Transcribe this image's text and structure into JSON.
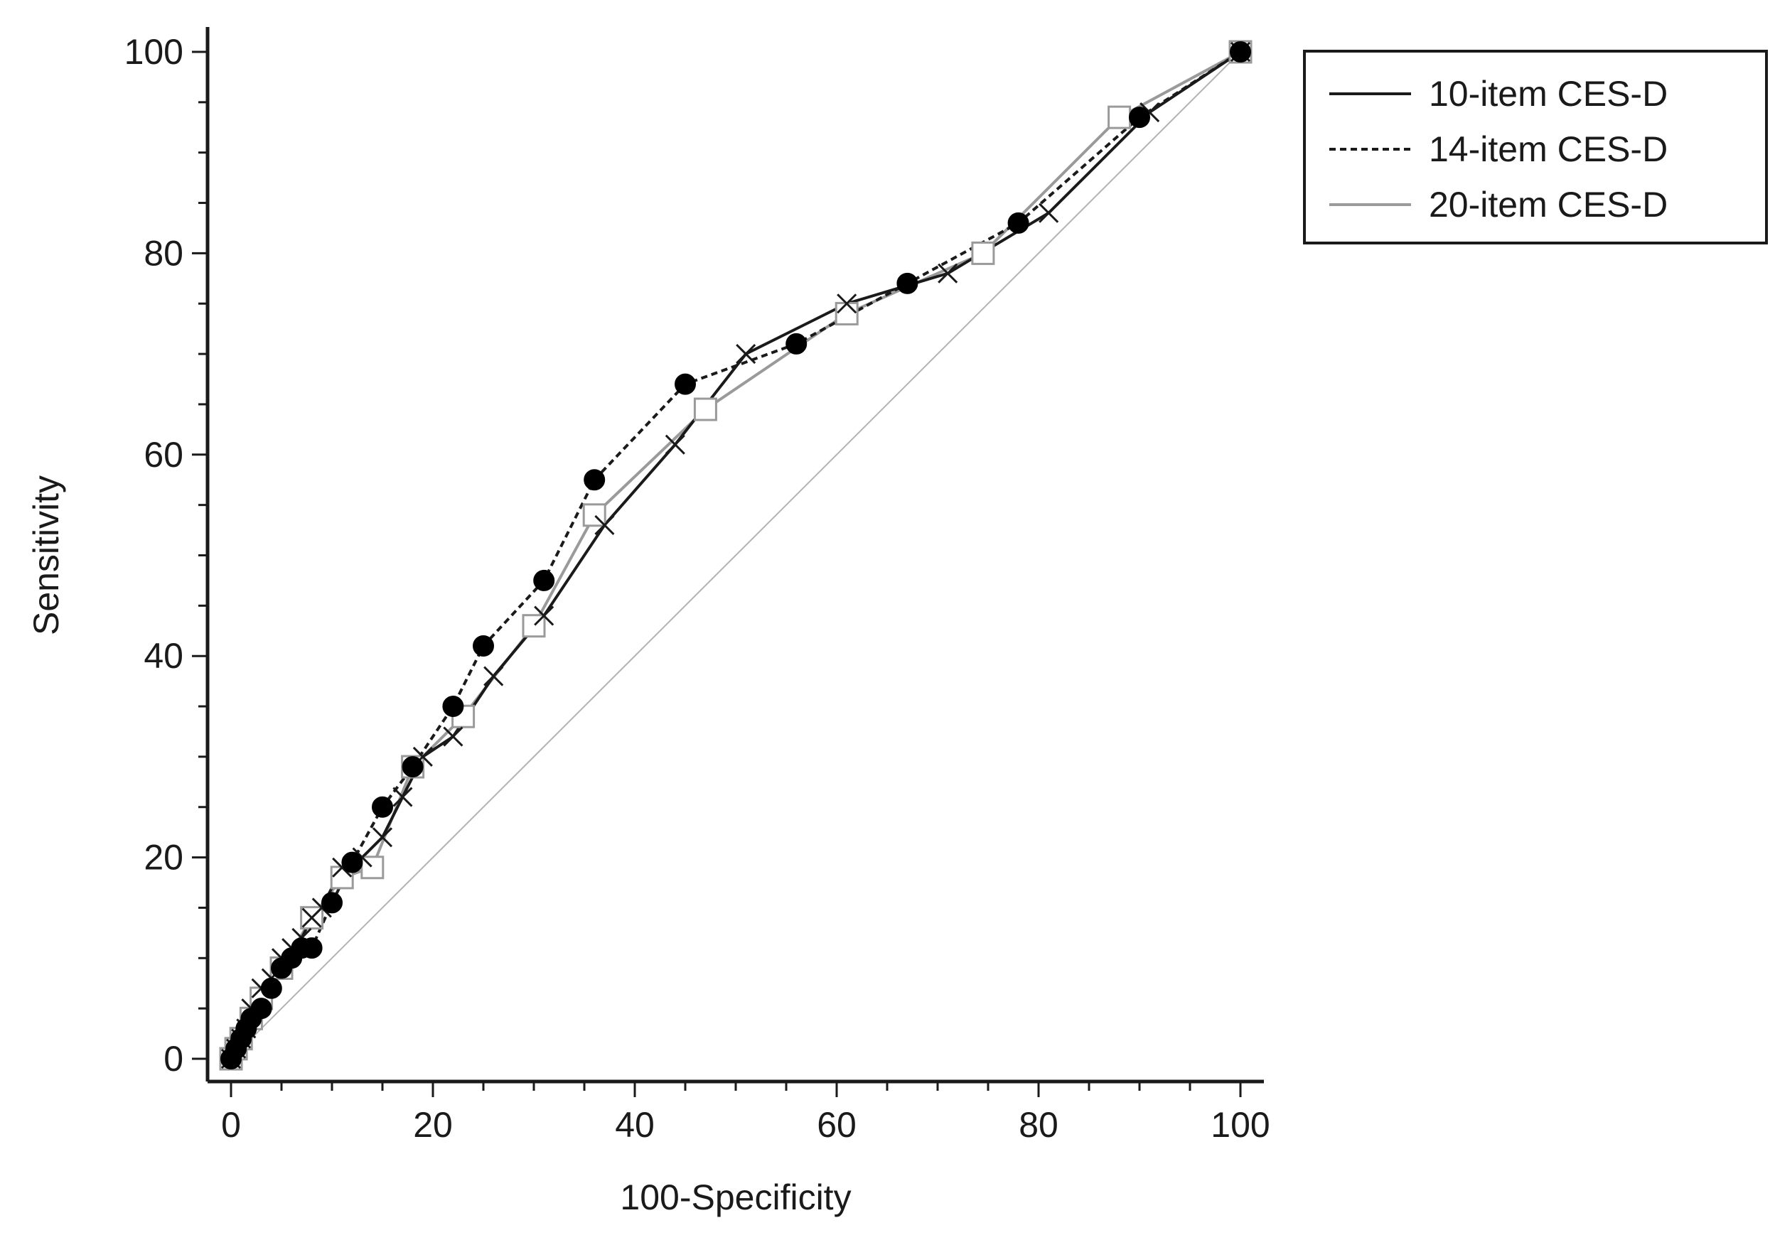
{
  "chart_data": {
    "type": "line",
    "title": "",
    "xlabel": "100-Specificity",
    "ylabel": "Sensitivity",
    "xlim": [
      0,
      100
    ],
    "ylim": [
      0,
      100
    ],
    "x_ticks": [
      "0",
      "20",
      "40",
      "60",
      "80",
      "100"
    ],
    "y_ticks": [
      "0",
      "20",
      "40",
      "60",
      "80",
      "100"
    ],
    "grid": false,
    "legend_position": "top-right",
    "reference_line": {
      "x": [
        0,
        100
      ],
      "y": [
        0,
        100
      ],
      "color": "#b3b3b3"
    },
    "series": [
      {
        "name": "10-item CES-D",
        "line_style": "solid",
        "color": "#1a1a1a",
        "marker": "cross",
        "x": [
          0,
          0.5,
          1,
          1.5,
          2,
          3,
          4,
          5,
          6,
          7,
          8,
          9,
          11,
          13,
          15,
          17,
          19,
          22,
          26,
          31,
          37,
          44,
          51,
          61,
          71,
          81,
          91,
          100
        ],
        "y": [
          0,
          1,
          2,
          3,
          5,
          7,
          8,
          10,
          11,
          12,
          14,
          15,
          19,
          20,
          22,
          26,
          30,
          32,
          38,
          44,
          53,
          61,
          70,
          75,
          78,
          84,
          94,
          100
        ]
      },
      {
        "name": "14-item CES-D",
        "line_style": "dashed",
        "color": "#1a1a1a",
        "marker": "filled-circle",
        "x": [
          0,
          0.5,
          1,
          1.5,
          2,
          3,
          4,
          5,
          6,
          7,
          8,
          10,
          12,
          15,
          18,
          22,
          25,
          31,
          36,
          45,
          56,
          67,
          78,
          90,
          100
        ],
        "y": [
          0,
          1,
          2,
          3,
          4,
          5,
          7,
          9,
          10,
          11,
          11,
          15.5,
          19.5,
          25,
          29,
          35,
          41,
          47.5,
          57.5,
          67,
          71,
          77,
          83,
          93.5,
          100
        ]
      },
      {
        "name": "20-item CES-D",
        "line_style": "solid",
        "color": "#9a9a9a",
        "marker": "open-square",
        "x": [
          0,
          0.5,
          1,
          2,
          3,
          5,
          8,
          11,
          14,
          18,
          23,
          30,
          36,
          47,
          61,
          74.5,
          88,
          100
        ],
        "y": [
          0,
          1,
          2,
          4,
          6,
          9,
          14,
          18,
          19,
          29,
          34,
          43,
          54,
          64.5,
          74,
          80,
          93.5,
          100
        ]
      }
    ]
  }
}
